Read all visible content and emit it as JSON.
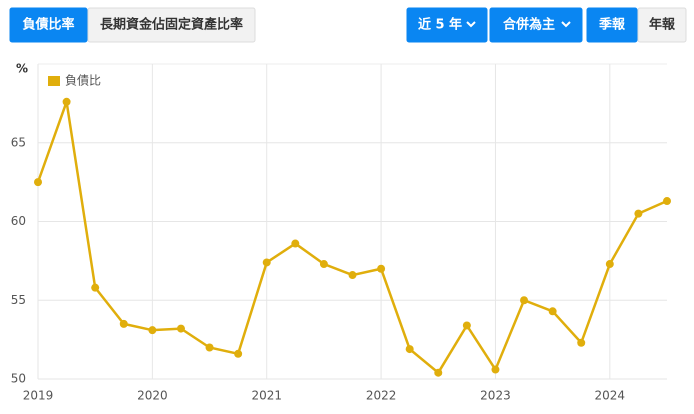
{
  "buttons": [
    {
      "label": "負債比率",
      "active": true,
      "dropdown": false
    },
    {
      "label": "長期資金佔固定資產比率",
      "active": false,
      "dropdown": false
    },
    {
      "label": "近 5 年",
      "active": true,
      "dropdown": true
    },
    {
      "label": "合併為主",
      "active": true,
      "dropdown": true
    },
    {
      "label": "季報",
      "active": true,
      "dropdown": false
    },
    {
      "label": "年報",
      "active": false,
      "dropdown": false
    }
  ],
  "chart_data": {
    "type": "line",
    "y_label": "%",
    "x": [
      2019,
      2019.25,
      2019.5,
      2019.75,
      2020,
      2020.25,
      2020.5,
      2020.75,
      2021,
      2021.25,
      2021.5,
      2021.75,
      2022,
      2022.25,
      2022.5,
      2022.75,
      2023,
      2023.25,
      2023.5,
      2023.75,
      2024,
      2024.25,
      2024.5
    ],
    "series": [
      {
        "name": "負債比",
        "color": "#e0ae0c",
        "values": [
          62.5,
          67.6,
          55.8,
          53.5,
          53.1,
          53.2,
          52.0,
          51.6,
          57.4,
          58.6,
          57.3,
          56.6,
          57.0,
          51.9,
          50.4,
          53.4,
          50.6,
          55.0,
          54.3,
          52.3,
          57.3,
          60.5,
          61.3
        ]
      }
    ],
    "xlim": [
      2019,
      2024.5
    ],
    "xticks": [
      2019,
      2020,
      2021,
      2022,
      2023,
      2024
    ],
    "ylim": [
      50,
      70
    ],
    "yticks": [
      50,
      55,
      60,
      65
    ],
    "grid": true,
    "legend": "top-left"
  }
}
